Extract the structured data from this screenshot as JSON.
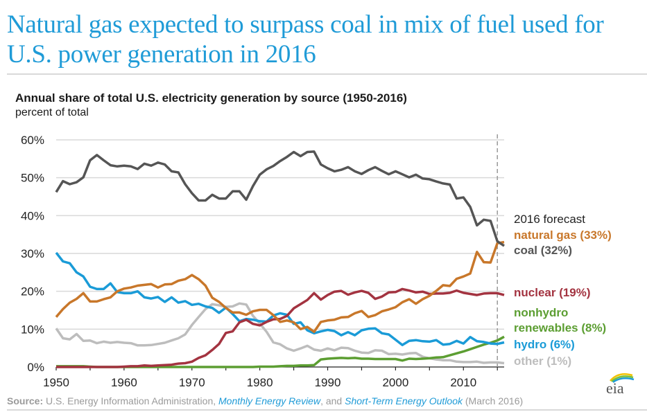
{
  "headline": "Natural gas expected to surpass coal in mix of fuel used for U.S. power generation in 2016",
  "source": {
    "label": "Source:",
    "text1": " U.S. Energy Information Administration, ",
    "link1": "Monthly Energy Review",
    "text2": ", and ",
    "link2": "Short-Term Energy Outlook",
    "text3": " (March 2016)"
  },
  "logo": "eia",
  "chart_data": {
    "type": "line",
    "title": "Annual share of total U.S. electricity generation by source (1950-2016)",
    "ylabel": "percent of total",
    "xlabel": "",
    "xlim": [
      1950,
      2016
    ],
    "ylim": [
      0,
      60
    ],
    "xticks": [
      1950,
      1960,
      1970,
      1980,
      1990,
      2000,
      2010
    ],
    "yticks": [
      0,
      10,
      20,
      30,
      40,
      50,
      60
    ],
    "ytick_labels": [
      "0%",
      "10%",
      "20%",
      "30%",
      "40%",
      "50%",
      "60%"
    ],
    "grid": true,
    "forecast_marker": {
      "x": 2015,
      "label": "2016 forecast"
    },
    "x": [
      1950,
      1951,
      1952,
      1953,
      1954,
      1955,
      1956,
      1957,
      1958,
      1959,
      1960,
      1961,
      1962,
      1963,
      1964,
      1965,
      1966,
      1967,
      1968,
      1969,
      1970,
      1971,
      1972,
      1973,
      1974,
      1975,
      1976,
      1977,
      1978,
      1979,
      1980,
      1981,
      1982,
      1983,
      1984,
      1985,
      1986,
      1987,
      1988,
      1989,
      1990,
      1991,
      1992,
      1993,
      1994,
      1995,
      1996,
      1997,
      1998,
      1999,
      2000,
      2001,
      2002,
      2003,
      2004,
      2005,
      2006,
      2007,
      2008,
      2009,
      2010,
      2011,
      2012,
      2013,
      2014,
      2015,
      2016
    ],
    "series": [
      {
        "name": "coal",
        "label": "coal (32%)",
        "color": "#555555",
        "values": [
          46.2,
          49.1,
          48.3,
          48.8,
          50.1,
          54.6,
          56.0,
          54.6,
          53.3,
          53.0,
          53.2,
          53.0,
          52.3,
          53.7,
          53.2,
          54.0,
          53.5,
          51.7,
          51.4,
          48.3,
          45.9,
          44.0,
          44.0,
          45.5,
          44.5,
          44.5,
          46.4,
          46.4,
          44.2,
          47.8,
          50.8,
          52.2,
          53.1,
          54.4,
          55.5,
          56.8,
          55.7,
          56.8,
          56.9,
          53.5,
          52.5,
          51.7,
          52.1,
          52.8,
          51.7,
          51.0,
          52.0,
          52.8,
          51.8,
          50.9,
          51.7,
          50.9,
          50.1,
          50.8,
          49.8,
          49.6,
          49.0,
          48.5,
          48.2,
          44.5,
          44.8,
          42.3,
          37.4,
          38.9,
          38.6,
          33.2,
          32.0
        ]
      },
      {
        "name": "natural gas",
        "label": "natural gas (33%)",
        "color": "#c8772a",
        "values": [
          13.2,
          15.3,
          17.0,
          18.0,
          19.5,
          17.3,
          17.3,
          17.9,
          18.4,
          20.0,
          20.7,
          21.0,
          21.5,
          21.7,
          21.9,
          21.0,
          21.8,
          21.9,
          22.8,
          23.2,
          24.3,
          23.2,
          21.5,
          18.3,
          17.2,
          15.6,
          14.4,
          14.4,
          13.8,
          14.7,
          15.1,
          15.1,
          13.7,
          11.9,
          12.3,
          11.8,
          10.0,
          10.6,
          9.3,
          11.9,
          12.3,
          12.5,
          13.1,
          13.2,
          14.2,
          14.8,
          13.2,
          13.7,
          14.7,
          15.2,
          15.8,
          17.1,
          17.9,
          16.7,
          17.9,
          18.8,
          20.1,
          21.6,
          21.4,
          23.3,
          23.9,
          24.7,
          30.4,
          27.7,
          27.6,
          32.7,
          33.0
        ]
      },
      {
        "name": "nuclear",
        "label": "nuclear (19%)",
        "color": "#a33340",
        "values": [
          0,
          0,
          0,
          0,
          0,
          0,
          0,
          0,
          0,
          0,
          0.1,
          0.2,
          0.2,
          0.4,
          0.3,
          0.4,
          0.5,
          0.6,
          0.9,
          1.0,
          1.4,
          2.4,
          3.1,
          4.5,
          6.1,
          9.0,
          9.4,
          11.8,
          12.5,
          11.4,
          11.0,
          11.9,
          12.6,
          12.7,
          13.5,
          15.5,
          16.6,
          17.7,
          19.5,
          17.8,
          19.0,
          19.9,
          20.1,
          19.1,
          19.7,
          20.1,
          19.6,
          18.0,
          18.6,
          19.7,
          19.8,
          20.6,
          20.2,
          19.7,
          19.9,
          19.3,
          19.4,
          19.4,
          19.6,
          20.2,
          19.6,
          19.3,
          19.0,
          19.4,
          19.5,
          19.5,
          19.0
        ]
      },
      {
        "name": "hydro",
        "label": "hydro (6%)",
        "color": "#1a9bd7",
        "values": [
          30.2,
          27.9,
          27.4,
          25.0,
          23.9,
          21.2,
          20.6,
          20.6,
          22.1,
          19.8,
          19.5,
          19.5,
          20.0,
          18.4,
          18.1,
          18.5,
          17.2,
          18.4,
          17.0,
          17.4,
          16.4,
          16.7,
          16.0,
          15.6,
          14.3,
          15.7,
          14.0,
          12.1,
          12.7,
          12.5,
          12.1,
          12.0,
          13.6,
          14.2,
          13.8,
          11.4,
          11.8,
          9.7,
          8.9,
          9.4,
          9.8,
          9.5,
          8.4,
          9.2,
          8.4,
          9.7,
          10.1,
          10.2,
          8.9,
          8.6,
          7.2,
          5.8,
          6.9,
          7.1,
          6.8,
          6.7,
          7.1,
          5.9,
          6.1,
          6.9,
          6.2,
          7.9,
          6.8,
          6.6,
          6.2,
          6.1,
          6.5
        ]
      },
      {
        "name": "nonhydro renewables",
        "label": "nonhydro renewables (8%)",
        "color": "#5c9e32",
        "values": [
          0.2,
          0.2,
          0.2,
          0.2,
          0.2,
          0.1,
          0,
          0,
          0,
          0,
          0,
          0,
          0,
          0,
          0,
          0,
          0,
          0,
          0,
          0,
          0,
          0,
          0,
          0,
          0,
          0,
          0,
          0,
          0,
          0,
          0.1,
          0.1,
          0.1,
          0.2,
          0.3,
          0.3,
          0.4,
          0.4,
          0.5,
          2.0,
          2.2,
          2.3,
          2.4,
          2.3,
          2.4,
          2.2,
          2.2,
          2.1,
          2.1,
          2.1,
          2.1,
          1.7,
          2.2,
          2.1,
          2.2,
          2.3,
          2.5,
          2.6,
          3.1,
          3.6,
          4.1,
          4.7,
          5.3,
          5.9,
          6.4,
          7.0,
          8.0
        ]
      },
      {
        "name": "other",
        "label": "other (1%)",
        "color": "#bdbdbd",
        "values": [
          10.2,
          7.6,
          7.3,
          8.7,
          6.9,
          7.0,
          6.3,
          6.7,
          6.4,
          6.6,
          6.4,
          6.3,
          5.7,
          5.7,
          5.8,
          6.1,
          6.4,
          7.0,
          7.6,
          8.6,
          11.1,
          13.2,
          15.3,
          16.6,
          16.3,
          15.9,
          16.0,
          16.8,
          16.5,
          13.5,
          11.5,
          9.3,
          6.5,
          6.0,
          4.9,
          4.3,
          4.9,
          5.6,
          4.6,
          4.3,
          4.9,
          4.4,
          5.1,
          5.0,
          4.3,
          3.8,
          3.7,
          4.4,
          4.3,
          3.4,
          3.5,
          3.3,
          3.6,
          3.7,
          2.7,
          2.3,
          2.0,
          1.8,
          1.8,
          1.4,
          1.3,
          1.3,
          1.4,
          1.1,
          1.2,
          1.2,
          1.0
        ]
      }
    ]
  }
}
